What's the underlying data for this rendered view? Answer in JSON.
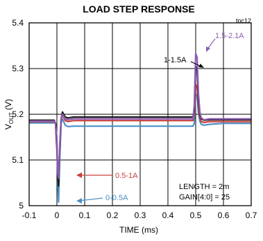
{
  "chart_data": {
    "type": "line",
    "title": "LOAD STEP RESPONSE",
    "figure_id": "toc12",
    "xlabel": "TIME (ms)",
    "ylabel": "V",
    "ylabel_sub": "OUT",
    "ylabel_unit": " (V)",
    "xlim": [
      -0.1,
      0.7
    ],
    "ylim": [
      5.0,
      5.4
    ],
    "xticks": [
      "-0.1",
      "0",
      "0.1",
      "0.2",
      "0.3",
      "0.4",
      "0.5",
      "0.6",
      "0.7"
    ],
    "yticks": [
      "5",
      "5.1",
      "5.2",
      "5.3",
      "5.4"
    ],
    "grid": true,
    "note_lines": [
      "LENGTH = 2m",
      "GAIN[4:0] = 25"
    ],
    "series": [
      {
        "name": "0-0.5A",
        "color": "#4a90c8",
        "x": [
          -0.1,
          -0.01,
          -0.005,
          0.0,
          0.003,
          0.006,
          0.01,
          0.015,
          0.02,
          0.03,
          0.04,
          0.06,
          0.1,
          0.2,
          0.3,
          0.4,
          0.49,
          0.495,
          0.5,
          0.505,
          0.51,
          0.515,
          0.52,
          0.53,
          0.55,
          0.6,
          0.7
        ],
        "y": [
          5.181,
          5.181,
          5.18,
          5.15,
          5.05,
          5.008,
          5.1,
          5.18,
          5.19,
          5.176,
          5.173,
          5.174,
          5.174,
          5.174,
          5.174,
          5.174,
          5.174,
          5.18,
          5.245,
          5.24,
          5.2,
          5.185,
          5.178,
          5.176,
          5.178,
          5.18,
          5.18
        ]
      },
      {
        "name": "0.5-1A",
        "color": "#c8403c",
        "x": [
          -0.1,
          -0.01,
          -0.005,
          0.0,
          0.003,
          0.006,
          0.01,
          0.015,
          0.02,
          0.03,
          0.04,
          0.06,
          0.1,
          0.2,
          0.3,
          0.4,
          0.49,
          0.495,
          0.5,
          0.505,
          0.51,
          0.515,
          0.52,
          0.53,
          0.55,
          0.6,
          0.7
        ],
        "y": [
          5.184,
          5.184,
          5.18,
          5.12,
          5.08,
          5.058,
          5.12,
          5.185,
          5.2,
          5.186,
          5.184,
          5.186,
          5.186,
          5.186,
          5.186,
          5.186,
          5.186,
          5.2,
          5.265,
          5.26,
          5.215,
          5.192,
          5.184,
          5.182,
          5.184,
          5.184,
          5.184
        ]
      },
      {
        "name": "1-1.5A",
        "color": "#1a1a1a",
        "x": [
          -0.1,
          -0.01,
          -0.005,
          0.0,
          0.003,
          0.006,
          0.01,
          0.015,
          0.02,
          0.03,
          0.04,
          0.06,
          0.1,
          0.2,
          0.3,
          0.4,
          0.49,
          0.495,
          0.5,
          0.505,
          0.51,
          0.515,
          0.52,
          0.53,
          0.55,
          0.6,
          0.7
        ],
        "y": [
          5.187,
          5.187,
          5.18,
          5.13,
          5.06,
          5.043,
          5.12,
          5.19,
          5.205,
          5.194,
          5.192,
          5.194,
          5.194,
          5.194,
          5.194,
          5.194,
          5.194,
          5.21,
          5.305,
          5.3,
          5.23,
          5.2,
          5.19,
          5.187,
          5.188,
          5.188,
          5.188
        ]
      },
      {
        "name": "1.5-2.1A",
        "color": "#8c5cb4",
        "x": [
          -0.1,
          -0.01,
          -0.005,
          0.0,
          0.003,
          0.006,
          0.01,
          0.015,
          0.02,
          0.03,
          0.04,
          0.06,
          0.1,
          0.2,
          0.3,
          0.4,
          0.49,
          0.495,
          0.5,
          0.505,
          0.51,
          0.515,
          0.52,
          0.53,
          0.55,
          0.6,
          0.7
        ],
        "y": [
          5.185,
          5.185,
          5.18,
          5.14,
          5.07,
          5.06,
          5.13,
          5.19,
          5.2,
          5.19,
          5.188,
          5.19,
          5.19,
          5.19,
          5.19,
          5.19,
          5.19,
          5.22,
          5.333,
          5.325,
          5.245,
          5.205,
          5.192,
          5.188,
          5.19,
          5.19,
          5.19
        ]
      }
    ]
  }
}
